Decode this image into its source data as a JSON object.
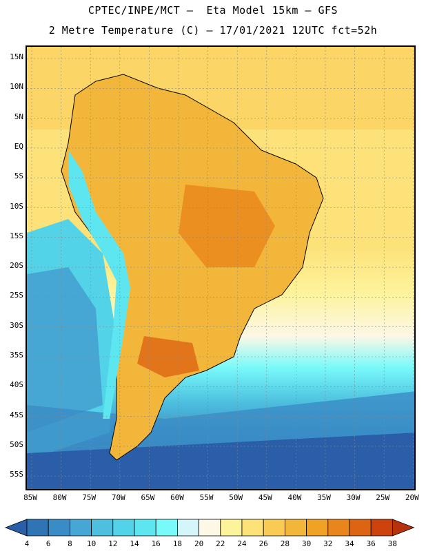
{
  "title": {
    "line1": "CPTEC/INPE/MCT –  Eta Model 15km – GFS",
    "line2": "2 Metre Temperature (C) – 17/01/2021 12UTC fct=52h"
  },
  "map": {
    "region": "South America",
    "lat_labels": [
      "15N",
      "10N",
      "5N",
      "EQ",
      "5S",
      "10S",
      "15S",
      "20S",
      "25S",
      "30S",
      "35S",
      "40S",
      "45S",
      "50S",
      "55S"
    ],
    "lon_labels": [
      "85W",
      "80W",
      "75W",
      "70W",
      "65W",
      "60W",
      "55W",
      "50W",
      "45W",
      "40W",
      "35W",
      "30W",
      "25W",
      "20W"
    ]
  },
  "colorbar": {
    "levels": [
      "4",
      "6",
      "8",
      "10",
      "12",
      "14",
      "16",
      "18",
      "20",
      "22",
      "24",
      "26",
      "28",
      "30",
      "32",
      "34",
      "36",
      "38"
    ],
    "colors": [
      "#2a5ea8",
      "#2f74b5",
      "#3a8cc6",
      "#46a7d4",
      "#4dbfdf",
      "#52d3e8",
      "#5ee6f0",
      "#79fafa",
      "#d4f6fb",
      "#fdf7e6",
      "#fdf39a",
      "#fde27a",
      "#f9cb55",
      "#f2b63a",
      "#f0a224",
      "#e8861b",
      "#dd6413",
      "#cc430e",
      "#b5320c"
    ]
  }
}
